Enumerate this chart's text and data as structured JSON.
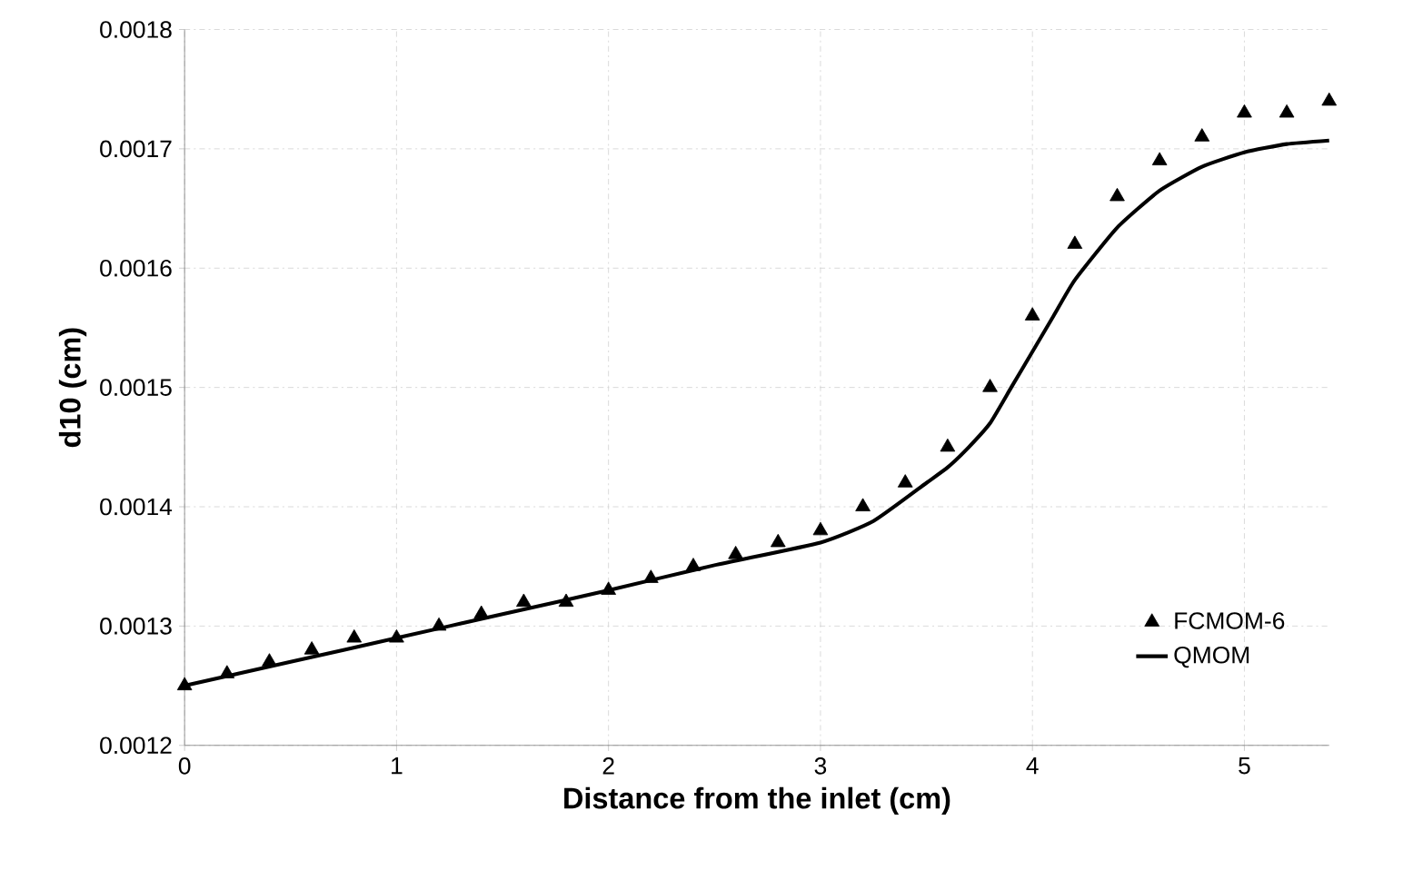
{
  "chart_data": {
    "type": "line",
    "xlabel": "Distance from the inlet (cm)",
    "ylabel": "d10 (cm)",
    "xlim": [
      0,
      5.4
    ],
    "xticks": [
      0,
      1,
      2,
      3,
      4,
      5
    ],
    "ylim": [
      0.0012,
      0.0018
    ],
    "yticks": [
      0.0012,
      0.0013,
      0.0014,
      0.0015,
      0.0016,
      0.0017,
      0.0018
    ],
    "grid": true,
    "legend": "bottom right",
    "series": [
      {
        "name": "FCMOM-6",
        "type": "scatter",
        "marker": "triangle",
        "color": "#000000",
        "x": [
          0,
          0.2,
          0.4,
          0.6,
          0.8,
          1.0,
          1.2,
          1.4,
          1.6,
          1.8,
          2.0,
          2.2,
          2.4,
          2.6,
          2.8,
          3.0,
          3.2,
          3.4,
          3.6,
          3.8,
          4.0,
          4.2,
          4.4,
          4.6,
          4.8,
          5.0,
          5.2,
          5.4
        ],
        "values": [
          0.00125,
          0.00126,
          0.00127,
          0.00128,
          0.00129,
          0.00129,
          0.0013,
          0.00131,
          0.00132,
          0.00132,
          0.00133,
          0.00134,
          0.00135,
          0.00136,
          0.00137,
          0.00138,
          0.0014,
          0.00142,
          0.00145,
          0.0015,
          0.00156,
          0.00162,
          0.00166,
          0.00169,
          0.00171,
          0.00173,
          0.00173,
          0.00174
        ]
      },
      {
        "name": "QMOM",
        "marker": "none",
        "line_style": "solid",
        "color": "#000000",
        "x": [
          0,
          0.5,
          1,
          1.5,
          2,
          2.5,
          3,
          3.25,
          3.5,
          3.6,
          3.7,
          3.8,
          3.9,
          4.0,
          4.1,
          4.2,
          4.4,
          4.6,
          4.8,
          5.0,
          5.2,
          5.4
        ],
        "values": [
          0.00125,
          0.00127,
          0.00129,
          0.00131,
          0.00133,
          0.001351,
          0.00137,
          0.001388,
          0.00142,
          0.001433,
          0.00145,
          0.00147,
          0.0015,
          0.00153,
          0.00156,
          0.00159,
          0.001634,
          0.001665,
          0.001685,
          0.001697,
          0.001704,
          0.001707
        ]
      }
    ]
  }
}
